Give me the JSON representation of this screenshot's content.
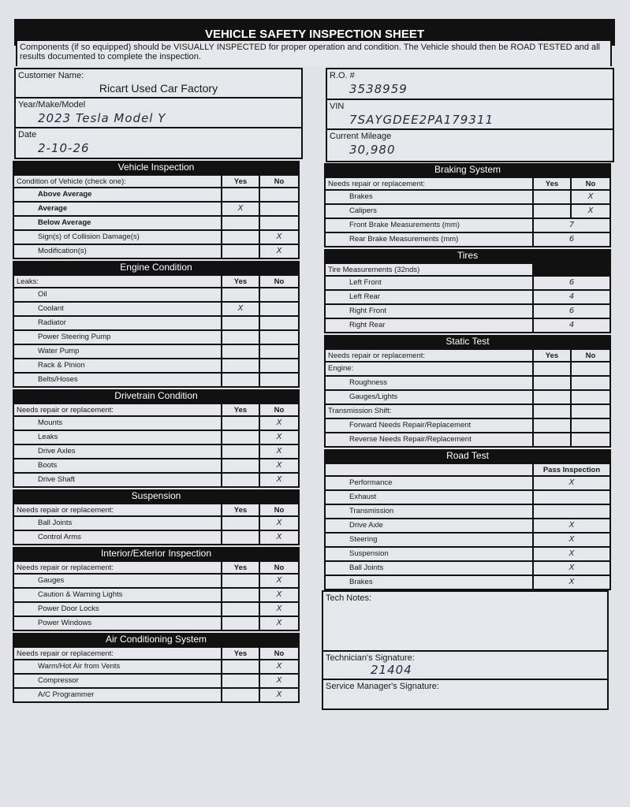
{
  "title": "VEHICLE SAFETY INSPECTION SHEET",
  "intro": "Components (if so equipped) should be VISUALLY INSPECTED for proper operation and condition. The Vehicle should then be ROAD TESTED and all results documented to complete the inspection.",
  "fields_left": [
    {
      "label": "Customer Name:",
      "value": "Ricart Used Car Factory",
      "handwritten": false
    },
    {
      "label": "Year/Make/Model",
      "value": "2023   Tesla   Model Y",
      "handwritten": true
    },
    {
      "label": "Date",
      "value": "2-10-26",
      "handwritten": true
    }
  ],
  "fields_right": [
    {
      "label": "R.O. #",
      "value": "3538959",
      "handwritten": true
    },
    {
      "label": "VIN",
      "value": "7SAYGDEE2PA179311",
      "handwritten": true
    },
    {
      "label": "Current Mileage",
      "value": "30,980",
      "handwritten": true
    }
  ],
  "left_sections": [
    {
      "title": "Vehicle Inspection",
      "header": {
        "label": "Condition of Vehicle (check one):",
        "yes": "Yes",
        "no": "No"
      },
      "rows": [
        {
          "label": "Above Average",
          "yes": "",
          "no": ""
        },
        {
          "label": "Average",
          "yes": "X",
          "no": ""
        },
        {
          "label": "Below Average",
          "yes": "",
          "no": ""
        },
        {
          "label": "Sign(s) of Collision Damage(s)",
          "yes": "",
          "no": "X"
        },
        {
          "label": "Modification(s)",
          "yes": "",
          "no": "X"
        }
      ]
    },
    {
      "title": "Engine Condition",
      "header": {
        "label": "Leaks:",
        "yes": "Yes",
        "no": "No"
      },
      "rows": [
        {
          "label": "Oil",
          "yes": "",
          "no": ""
        },
        {
          "label": "Coolant",
          "yes": "X",
          "no": ""
        },
        {
          "label": "Radiator",
          "yes": "",
          "no": ""
        },
        {
          "label": "Power Steering Pump",
          "yes": "",
          "no": ""
        },
        {
          "label": "Water Pump",
          "yes": "",
          "no": ""
        },
        {
          "label": "Rack & Pinion",
          "yes": "",
          "no": ""
        },
        {
          "label": "Belts/Hoses",
          "yes": "",
          "no": ""
        }
      ]
    },
    {
      "title": "Drivetrain Condition",
      "header": {
        "label": "Needs repair or replacement:",
        "yes": "Yes",
        "no": "No"
      },
      "rows": [
        {
          "label": "Mounts",
          "yes": "",
          "no": "X"
        },
        {
          "label": "Leaks",
          "yes": "",
          "no": "X"
        },
        {
          "label": "Drive Axles",
          "yes": "",
          "no": "X"
        },
        {
          "label": "Boots",
          "yes": "",
          "no": "X"
        },
        {
          "label": "Drive Shaft",
          "yes": "",
          "no": "X"
        }
      ]
    },
    {
      "title": "Suspension",
      "header": {
        "label": "Needs repair or replacement:",
        "yes": "Yes",
        "no": "No"
      },
      "rows": [
        {
          "label": "Ball Joints",
          "yes": "",
          "no": "X"
        },
        {
          "label": "Control Arms",
          "yes": "",
          "no": "X"
        }
      ]
    },
    {
      "title": "Interior/Exterior Inspection",
      "header": {
        "label": "Needs repair or replacement:",
        "yes": "Yes",
        "no": "No"
      },
      "rows": [
        {
          "label": "Gauges",
          "yes": "",
          "no": "X"
        },
        {
          "label": "Caution & Warning Lights",
          "yes": "",
          "no": "X"
        },
        {
          "label": "Power Door Locks",
          "yes": "",
          "no": "X"
        },
        {
          "label": "Power Windows",
          "yes": "",
          "no": "X"
        }
      ]
    },
    {
      "title": "Air Conditioning System",
      "header": {
        "label": "Needs repair or replacement:",
        "yes": "Yes",
        "no": "No"
      },
      "rows": [
        {
          "label": "Warm/Hot Air from Vents",
          "yes": "",
          "no": "X"
        },
        {
          "label": "Compressor",
          "yes": "",
          "no": "X"
        },
        {
          "label": "A/C Programmer",
          "yes": "",
          "no": "X"
        }
      ]
    }
  ],
  "right_sections": [
    {
      "title": "Braking System",
      "header": {
        "label": "Needs repair or replacement:",
        "yes": "Yes",
        "no": "No"
      },
      "rows": [
        {
          "label": "Brakes",
          "yes": "",
          "no": "X"
        },
        {
          "label": "Calipers",
          "yes": "",
          "no": "X"
        },
        {
          "label": "Front Brake Measurements (mm)",
          "value": "7"
        },
        {
          "label": "Rear Brake Measurements (mm)",
          "value": "6"
        }
      ]
    },
    {
      "title": "Tires",
      "header": {
        "label": "Tire Measurements (32nds)",
        "blank": true
      },
      "rows": [
        {
          "label": "Left Front",
          "value": "6"
        },
        {
          "label": "Left Rear",
          "value": "4"
        },
        {
          "label": "Right Front",
          "value": "6"
        },
        {
          "label": "Right Rear",
          "value": "4"
        }
      ]
    },
    {
      "title": "Static Test",
      "header": {
        "label": "Needs repair or replacement:",
        "yes": "Yes",
        "no": "No"
      },
      "rows": [
        {
          "label": "Engine:",
          "yes": "",
          "no": ""
        },
        {
          "label": "Roughness",
          "yes": "",
          "no": ""
        },
        {
          "label": "Gauges/Lights",
          "yes": "",
          "no": ""
        },
        {
          "label": "Transmission Shift:",
          "yes": "",
          "no": ""
        },
        {
          "label": "Forward Needs Repair/Replacement",
          "yes": "",
          "no": ""
        },
        {
          "label": "Reverse Needs Repair/Replacement",
          "yes": "",
          "no": ""
        }
      ]
    },
    {
      "title": "Road Test",
      "header": {
        "label": "",
        "pass": "Pass Inspection"
      },
      "rows": [
        {
          "label": "Performance",
          "value": "X"
        },
        {
          "label": "Exhaust",
          "value": ""
        },
        {
          "label": "Transmission",
          "value": ""
        },
        {
          "label": "Drive Axle",
          "value": "X"
        },
        {
          "label": "Steering",
          "value": "X"
        },
        {
          "label": "Suspension",
          "value": "X"
        },
        {
          "label": "Ball Joints",
          "value": "X"
        },
        {
          "label": "Brakes",
          "value": "X"
        }
      ]
    }
  ],
  "notes": {
    "tech_notes_label": "Tech Notes:",
    "tech_notes": "",
    "tech_sig_label": "Technician's Signature:",
    "tech_sig": "21404",
    "mgr_sig_label": "Service Manager's Signature:",
    "mgr_sig": ""
  }
}
